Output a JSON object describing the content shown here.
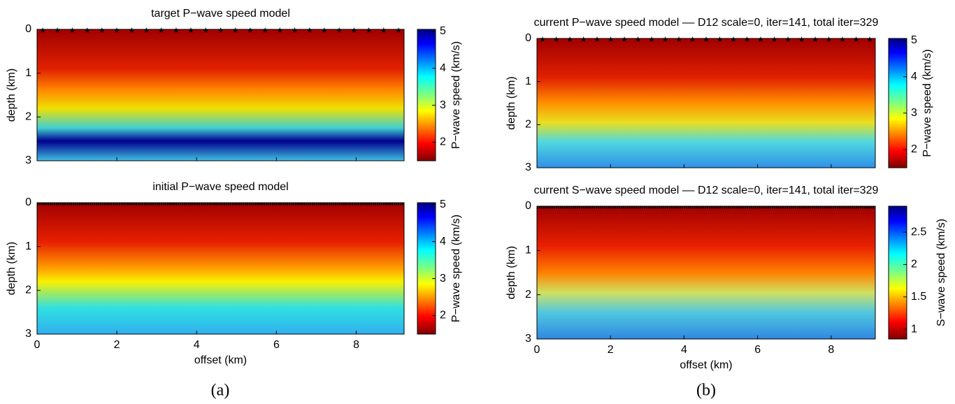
{
  "chart_data": [
    {
      "type": "heatmap",
      "title": "target P−wave speed model",
      "ylabel": "depth (km)",
      "xlim": [
        0,
        9.2
      ],
      "ylim": [
        3,
        0
      ],
      "xticks": [
        0,
        2,
        4,
        6,
        8
      ],
      "yticks": [
        0,
        1,
        2,
        3
      ],
      "colorbar": {
        "label": "P−wave speed (km/s)",
        "lim": [
          1.5,
          5.05
        ],
        "ticks": [
          2,
          3,
          4,
          5
        ]
      }
    },
    {
      "type": "heatmap",
      "title": "initial P−wave speed model",
      "xlabel": "offset (km)",
      "ylabel": "depth (km)",
      "xlim": [
        0,
        9.2
      ],
      "ylim": [
        3,
        0
      ],
      "xticks": [
        0,
        2,
        4,
        6,
        8
      ],
      "yticks": [
        0,
        1,
        2,
        3
      ],
      "colorbar": {
        "label": "P−wave speed (km/s)",
        "lim": [
          1.5,
          5.05
        ],
        "ticks": [
          2,
          3,
          4,
          5
        ]
      }
    },
    {
      "type": "heatmap",
      "title": "current P−wave speed model –– D12 scale=0, iter=141, total iter=329",
      "ylabel": "depth (km)",
      "xlim": [
        0,
        9.2
      ],
      "ylim": [
        3,
        0
      ],
      "xticks": [
        0,
        2,
        4,
        6,
        8
      ],
      "yticks": [
        0,
        1,
        2,
        3
      ],
      "colorbar": {
        "label": "P−wave speed (km/s)",
        "lim": [
          1.5,
          5.05
        ],
        "ticks": [
          2,
          3,
          4,
          5
        ]
      }
    },
    {
      "type": "heatmap",
      "title": "current S−wave speed model –– D12 scale=0, iter=141, total iter=329",
      "xlabel": "offset (km)",
      "ylabel": "depth (km)",
      "xlim": [
        0,
        9.2
      ],
      "ylim": [
        3,
        0
      ],
      "xticks": [
        0,
        2,
        4,
        6,
        8
      ],
      "yticks": [
        0,
        1,
        2,
        3
      ],
      "colorbar": {
        "label": "S−wave speed (km/s)",
        "lim": [
          0.85,
          2.9
        ],
        "ticks": [
          1,
          1.5,
          2,
          2.5
        ]
      }
    }
  ],
  "panel_labels": [
    "(a)",
    "(b)"
  ]
}
